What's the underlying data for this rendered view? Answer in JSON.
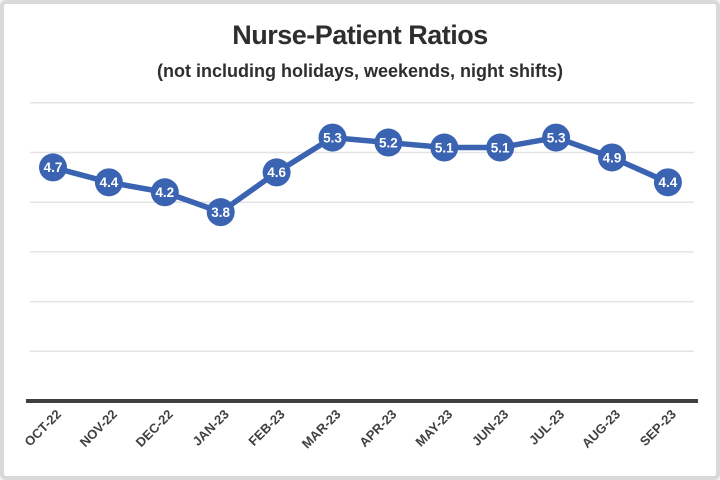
{
  "page": {
    "background_color": "#ffffff",
    "frame_border_color": "#d9d9d9"
  },
  "header": {
    "title": "Nurse-Patient Ratios",
    "subtitle": "(not including holidays, weekends, night shifts)",
    "title_color": "#2e2e2e"
  },
  "chart_data": {
    "type": "line",
    "title": "Nurse-Patient Ratios",
    "subtitle": "(not including holidays, weekends, night shifts)",
    "categories": [
      "OCT-22",
      "NOV-22",
      "DEC-22",
      "JAN-23",
      "FEB-23",
      "MAR-23",
      "APR-23",
      "MAY-23",
      "JUN-23",
      "JUL-23",
      "AUG-23",
      "SEP-23"
    ],
    "values": [
      4.7,
      4.4,
      4.2,
      3.8,
      4.6,
      5.3,
      5.2,
      5.1,
      5.1,
      5.3,
      4.9,
      4.4
    ],
    "data_labels_shown": true,
    "xlabel": "",
    "ylabel": "",
    "ylim": [
      0,
      6
    ],
    "gridline_step": 1,
    "grid": true,
    "y_tick_labels_shown": false,
    "legend": "none",
    "marker_style": "filled-circle-with-value",
    "line_color": "#3a63b2",
    "marker_color": "#3a63b2",
    "data_label_color": "#ffffff",
    "gridline_color": "#e3e3e3",
    "axis_line_color": "#3f3f3f",
    "tick_label_color": "#404040",
    "tick_label_rotation_deg": -45
  }
}
